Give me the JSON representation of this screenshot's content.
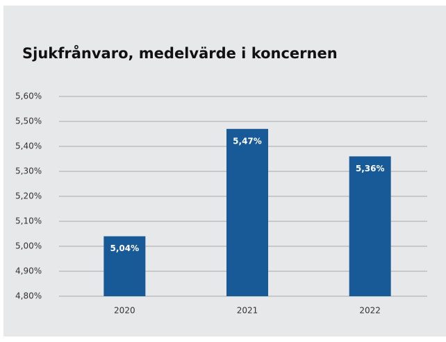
{
  "chart_data": {
    "type": "bar",
    "title": "Sjukfrånvaro, medelvärde i koncernen",
    "categories": [
      "2020",
      "2021",
      "2022"
    ],
    "values": [
      5.04,
      5.47,
      5.36
    ],
    "value_labels": [
      "5,04%",
      "5,47%",
      "5,36%"
    ],
    "color": "#175a97",
    "ylim": [
      4.8,
      5.6
    ],
    "yticks": [
      {
        "value": 4.8,
        "label": "4,80%"
      },
      {
        "value": 4.9,
        "label": "4,90%"
      },
      {
        "value": 5.0,
        "label": "5,00%"
      },
      {
        "value": 5.1,
        "label": "5,10%"
      },
      {
        "value": 5.2,
        "label": "5,20%"
      },
      {
        "value": 5.3,
        "label": "5,30%"
      },
      {
        "value": 5.4,
        "label": "5,40%"
      },
      {
        "value": 5.5,
        "label": "5,50%"
      },
      {
        "value": 5.6,
        "label": "5,60%"
      }
    ],
    "grid": true
  }
}
